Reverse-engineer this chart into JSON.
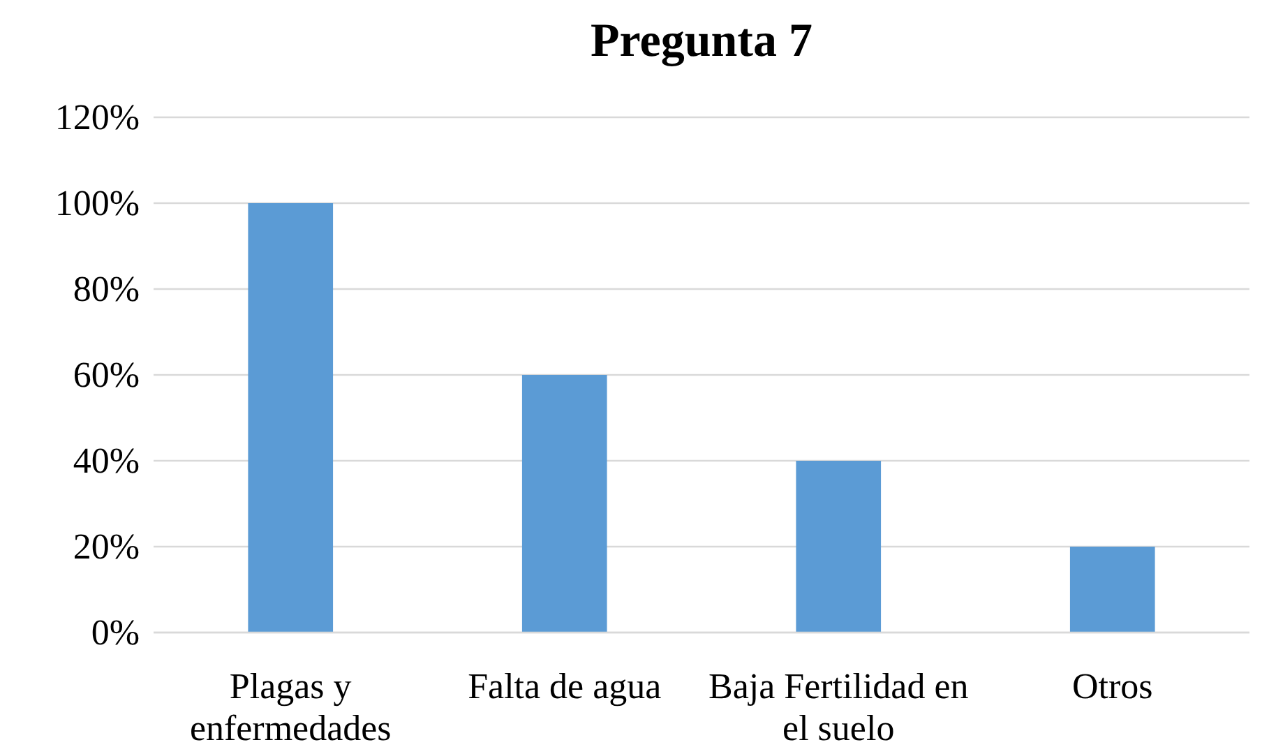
{
  "chart_data": {
    "type": "bar",
    "title": "Pregunta 7",
    "categories": [
      "Plagas y enfermedades",
      "Falta de agua",
      "Baja Fertilidad en el suelo",
      "Otros"
    ],
    "values": [
      100,
      60,
      40,
      20
    ],
    "color": "#5b9bd5",
    "ylim": [
      0,
      120
    ],
    "yticks": [
      {
        "value": 0,
        "label": "0%"
      },
      {
        "value": 20,
        "label": "20%"
      },
      {
        "value": 40,
        "label": "40%"
      },
      {
        "value": 60,
        "label": "60%"
      },
      {
        "value": 80,
        "label": "80%"
      },
      {
        "value": 100,
        "label": "100%"
      },
      {
        "value": 120,
        "label": "120%"
      }
    ],
    "grid": "y"
  }
}
